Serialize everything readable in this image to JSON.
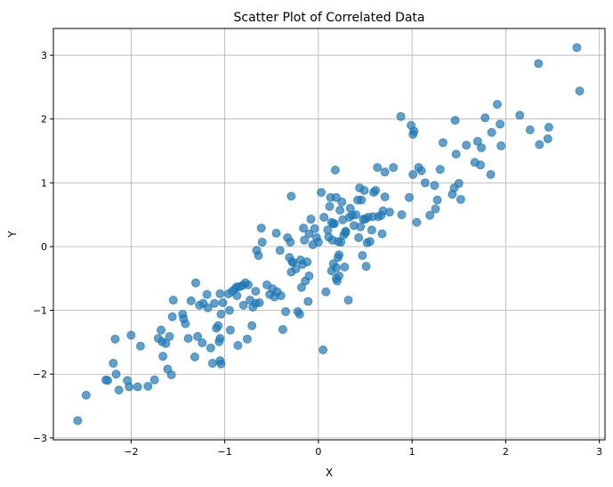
{
  "chart_data": {
    "type": "scatter",
    "title": "Scatter Plot of Correlated Data",
    "xlabel": "X",
    "ylabel": "Y",
    "xlim": [
      -2.83,
      3.06
    ],
    "ylim": [
      -3.03,
      3.42
    ],
    "xticks": [
      -2,
      -1,
      0,
      1,
      2,
      3
    ],
    "yticks": [
      -3,
      -2,
      -1,
      0,
      1,
      2,
      3
    ],
    "grid": true,
    "color": "#1f77b4",
    "alpha": 0.7,
    "points": [
      [
        -2.57,
        -2.73
      ],
      [
        -2.48,
        -2.33
      ],
      [
        -2.27,
        -2.09
      ],
      [
        -2.25,
        -2.1
      ],
      [
        -2.19,
        -1.83
      ],
      [
        -2.17,
        -1.45
      ],
      [
        -2.16,
        -2.0
      ],
      [
        -2.13,
        -2.25
      ],
      [
        -2.04,
        -2.1
      ],
      [
        -2.02,
        -2.2
      ],
      [
        -2.0,
        -1.39
      ],
      [
        -1.93,
        -2.2
      ],
      [
        -1.9,
        -1.56
      ],
      [
        -1.82,
        -2.19
      ],
      [
        -1.75,
        -2.09
      ],
      [
        -1.71,
        -1.44
      ],
      [
        -1.68,
        -1.31
      ],
      [
        -1.67,
        -1.49
      ],
      [
        -1.66,
        -1.72
      ],
      [
        -1.63,
        -1.52
      ],
      [
        -1.61,
        -1.92
      ],
      [
        -1.59,
        -1.41
      ],
      [
        -1.57,
        -2.01
      ],
      [
        -1.56,
        -1.1
      ],
      [
        -1.55,
        -0.84
      ],
      [
        -1.45,
        -1.06
      ],
      [
        -1.44,
        -1.13
      ],
      [
        -1.42,
        -1.21
      ],
      [
        -1.39,
        -1.44
      ],
      [
        -1.36,
        -0.85
      ],
      [
        -1.32,
        -1.73
      ],
      [
        -1.31,
        -0.57
      ],
      [
        -1.29,
        -1.41
      ],
      [
        -1.27,
        -0.92
      ],
      [
        -1.24,
        -1.51
      ],
      [
        -1.23,
        -0.89
      ],
      [
        -1.19,
        -0.75
      ],
      [
        -1.18,
        -0.96
      ],
      [
        -1.15,
        -1.59
      ],
      [
        -1.13,
        -1.83
      ],
      [
        -1.11,
        -0.89
      ],
      [
        -1.09,
        -1.28
      ],
      [
        -1.07,
        -1.24
      ],
      [
        -1.06,
        -1.49
      ],
      [
        -1.05,
        -1.79
      ],
      [
        -1.05,
        -0.74
      ],
      [
        -1.05,
        -1.44
      ],
      [
        -1.04,
        -1.06
      ],
      [
        -1.04,
        -1.84
      ],
      [
        -1.02,
        -0.88
      ],
      [
        -0.96,
        -0.74
      ],
      [
        -0.95,
        -1.0
      ],
      [
        -0.94,
        -1.31
      ],
      [
        -0.92,
        -0.7
      ],
      [
        -0.89,
        -0.66
      ],
      [
        -0.87,
        -0.63
      ],
      [
        -0.87,
        -0.77
      ],
      [
        -0.86,
        -1.55
      ],
      [
        -0.84,
        -0.63
      ],
      [
        -0.81,
        -0.61
      ],
      [
        -0.8,
        -0.92
      ],
      [
        -0.78,
        -0.57
      ],
      [
        -0.76,
        -1.45
      ],
      [
        -0.75,
        -0.6
      ],
      [
        -0.73,
        -0.84
      ],
      [
        -0.71,
        -1.24
      ],
      [
        -0.7,
        -0.95
      ],
      [
        -0.67,
        -0.89
      ],
      [
        -0.67,
        -0.7
      ],
      [
        -0.66,
        -0.06
      ],
      [
        -0.64,
        -0.14
      ],
      [
        -0.63,
        -0.88
      ],
      [
        -0.61,
        0.29
      ],
      [
        -0.6,
        0.07
      ],
      [
        -0.55,
        -0.6
      ],
      [
        -0.52,
        -0.75
      ],
      [
        -0.49,
        -0.66
      ],
      [
        -0.47,
        -0.79
      ],
      [
        -0.45,
        0.21
      ],
      [
        -0.44,
        -0.71
      ],
      [
        -0.41,
        -0.06
      ],
      [
        -0.4,
        -0.77
      ],
      [
        -0.38,
        -1.3
      ],
      [
        -0.35,
        -1.02
      ],
      [
        -0.33,
        0.14
      ],
      [
        -0.31,
        -0.17
      ],
      [
        -0.3,
        0.07
      ],
      [
        -0.29,
        0.79
      ],
      [
        -0.29,
        -0.4
      ],
      [
        -0.28,
        -0.24
      ],
      [
        -0.27,
        -0.25
      ],
      [
        -0.24,
        -0.35
      ],
      [
        -0.22,
        -1.02
      ],
      [
        -0.2,
        -1.06
      ],
      [
        -0.19,
        -0.21
      ],
      [
        -0.18,
        -0.64
      ],
      [
        -0.17,
        -0.28
      ],
      [
        -0.16,
        0.29
      ],
      [
        -0.15,
        0.1
      ],
      [
        -0.14,
        -0.54
      ],
      [
        -0.12,
        -0.24
      ],
      [
        -0.11,
        -0.86
      ],
      [
        -0.1,
        0.2
      ],
      [
        -0.1,
        -0.46
      ],
      [
        -0.08,
        0.43
      ],
      [
        -0.06,
        0.03
      ],
      [
        -0.04,
        0.28
      ],
      [
        -0.02,
        0.14
      ],
      [
        0.0,
        0.07
      ],
      [
        0.03,
        0.85
      ],
      [
        0.05,
        -1.62
      ],
      [
        0.06,
        0.46
      ],
      [
        0.08,
        -0.71
      ],
      [
        0.1,
        0.26
      ],
      [
        0.11,
        0.15
      ],
      [
        0.12,
        0.63
      ],
      [
        0.13,
        0.77
      ],
      [
        0.14,
        0.38
      ],
      [
        0.14,
        -0.38
      ],
      [
        0.15,
        0.1
      ],
      [
        0.16,
        0.36
      ],
      [
        0.16,
        -0.27
      ],
      [
        0.17,
        0.36
      ],
      [
        0.18,
        1.2
      ],
      [
        0.19,
        -0.33
      ],
      [
        0.19,
        0.77
      ],
      [
        0.19,
        -0.5
      ],
      [
        0.2,
        -0.54
      ],
      [
        0.21,
        0.08
      ],
      [
        0.21,
        -0.17
      ],
      [
        0.22,
        -0.46
      ],
      [
        0.22,
        -0.13
      ],
      [
        0.23,
        0.57
      ],
      [
        0.24,
        0.07
      ],
      [
        0.25,
        0.7
      ],
      [
        0.26,
        0.42
      ],
      [
        0.27,
        0.18
      ],
      [
        0.28,
        -0.32
      ],
      [
        0.29,
        0.22
      ],
      [
        0.29,
        0.24
      ],
      [
        0.32,
        -0.84
      ],
      [
        0.33,
        0.46
      ],
      [
        0.34,
        0.6
      ],
      [
        0.36,
        0.49
      ],
      [
        0.38,
        0.33
      ],
      [
        0.4,
        0.5
      ],
      [
        0.42,
        0.73
      ],
      [
        0.43,
        0.14
      ],
      [
        0.44,
        0.92
      ],
      [
        0.45,
        0.31
      ],
      [
        0.46,
        0.73
      ],
      [
        0.47,
        -0.14
      ],
      [
        0.48,
        0.43
      ],
      [
        0.49,
        0.88
      ],
      [
        0.5,
        0.43
      ],
      [
        0.51,
        -0.31
      ],
      [
        0.52,
        0.06
      ],
      [
        0.53,
        0.46
      ],
      [
        0.55,
        0.08
      ],
      [
        0.57,
        0.26
      ],
      [
        0.58,
        0.47
      ],
      [
        0.59,
        0.85
      ],
      [
        0.61,
        0.88
      ],
      [
        0.63,
        1.24
      ],
      [
        0.64,
        0.47
      ],
      [
        0.67,
        0.49
      ],
      [
        0.68,
        0.2
      ],
      [
        0.69,
        0.56
      ],
      [
        0.71,
        0.78
      ],
      [
        0.71,
        1.17
      ],
      [
        0.76,
        0.54
      ],
      [
        0.8,
        1.24
      ],
      [
        0.88,
        2.04
      ],
      [
        0.89,
        0.5
      ],
      [
        0.97,
        0.77
      ],
      [
        0.99,
        1.9
      ],
      [
        1.01,
        1.13
      ],
      [
        1.01,
        1.76
      ],
      [
        1.02,
        1.81
      ],
      [
        1.05,
        0.38
      ],
      [
        1.07,
        1.24
      ],
      [
        1.1,
        1.19
      ],
      [
        1.14,
        1.0
      ],
      [
        1.19,
        0.49
      ],
      [
        1.24,
        0.96
      ],
      [
        1.25,
        0.59
      ],
      [
        1.27,
        0.73
      ],
      [
        1.3,
        1.21
      ],
      [
        1.33,
        1.63
      ],
      [
        1.43,
        0.82
      ],
      [
        1.45,
        0.92
      ],
      [
        1.46,
        1.98
      ],
      [
        1.47,
        1.45
      ],
      [
        1.5,
        0.99
      ],
      [
        1.52,
        0.74
      ],
      [
        1.58,
        1.59
      ],
      [
        1.67,
        1.32
      ],
      [
        1.7,
        1.65
      ],
      [
        1.73,
        1.28
      ],
      [
        1.74,
        1.55
      ],
      [
        1.78,
        2.02
      ],
      [
        1.84,
        1.13
      ],
      [
        1.85,
        1.79
      ],
      [
        1.91,
        2.23
      ],
      [
        1.94,
        1.92
      ],
      [
        1.95,
        1.58
      ],
      [
        2.15,
        2.06
      ],
      [
        2.26,
        1.83
      ],
      [
        2.35,
        2.87
      ],
      [
        2.36,
        1.6
      ],
      [
        2.45,
        1.69
      ],
      [
        2.46,
        1.87
      ],
      [
        2.76,
        3.12
      ],
      [
        2.79,
        2.44
      ]
    ]
  }
}
